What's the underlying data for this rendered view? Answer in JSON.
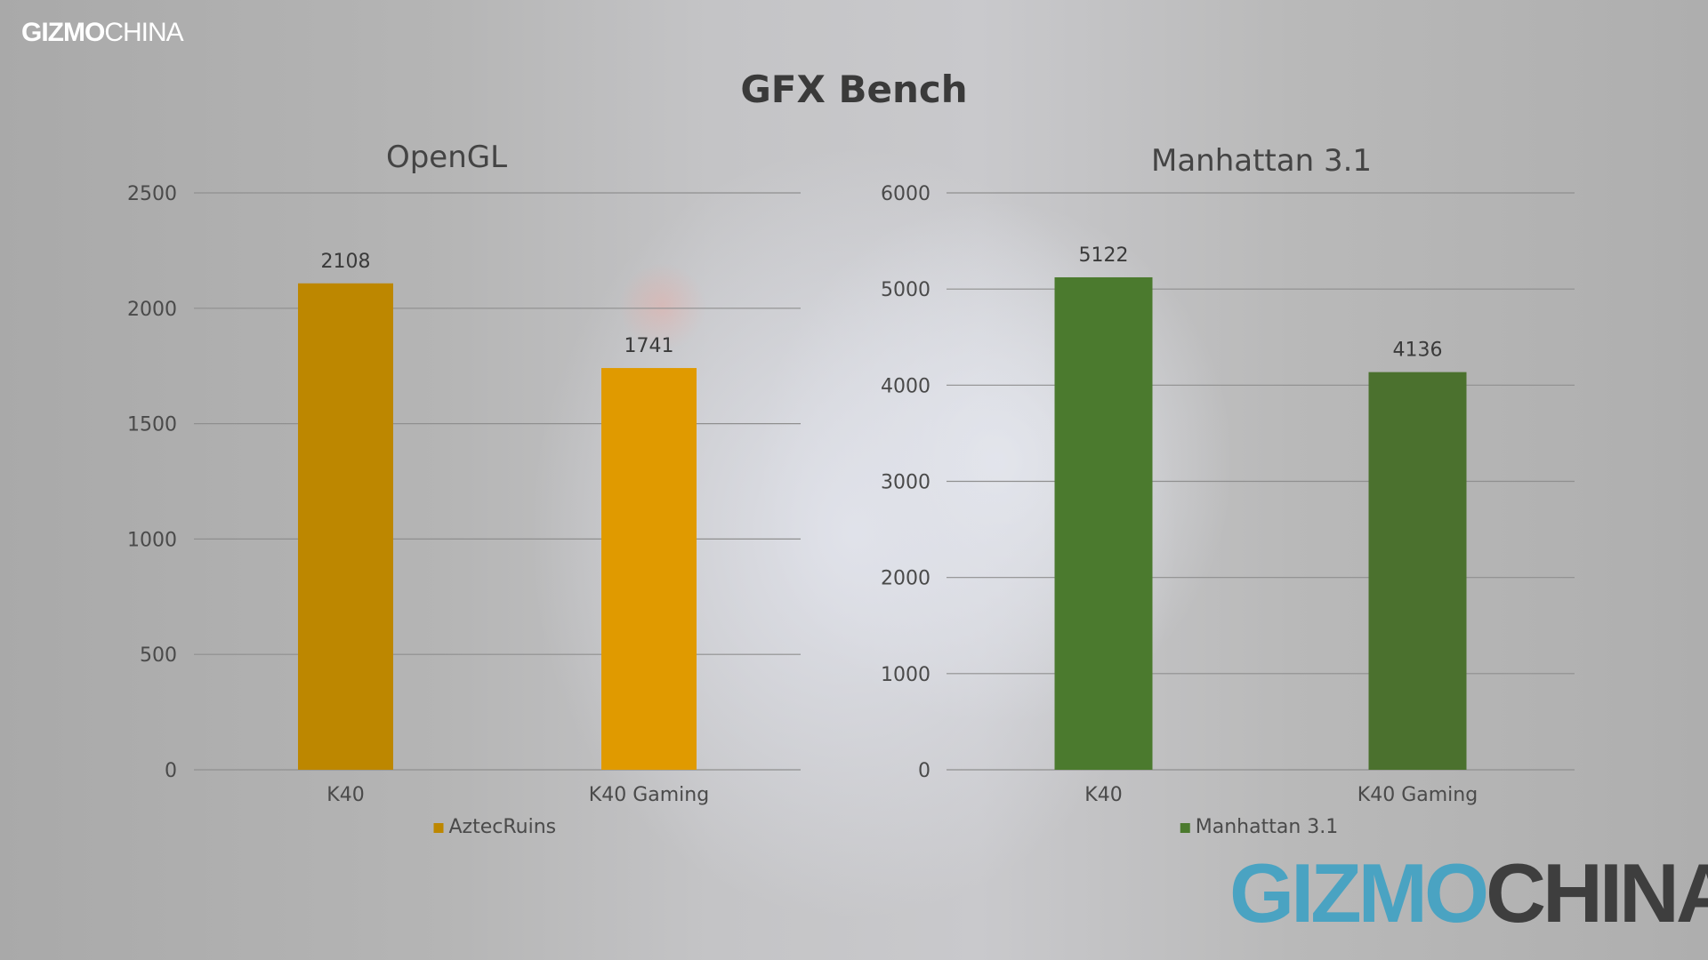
{
  "brand": {
    "small_logo_bold": "GIZMO",
    "small_logo_light": "CHINA",
    "big_logo_first": "GIZMO",
    "big_logo_second": "CHINA"
  },
  "page_title": "GFX Bench",
  "chart_data": [
    {
      "type": "bar",
      "title": "OpenGL",
      "categories": [
        "K40",
        "K40 Gaming"
      ],
      "series": [
        {
          "name": "AztecRuins",
          "values": [
            2108,
            1741
          ]
        }
      ],
      "yticks": [
        0,
        500,
        1000,
        1500,
        2000,
        2500
      ],
      "ylim": [
        0,
        2500
      ],
      "grid": true,
      "legend_position": "bottom",
      "colors": [
        "#bd8700",
        "#e09a00"
      ]
    },
    {
      "type": "bar",
      "title": "Manhattan 3.1",
      "categories": [
        "K40",
        "K40 Gaming"
      ],
      "series": [
        {
          "name": "Manhattan 3.1",
          "values": [
            5122,
            4136
          ]
        }
      ],
      "yticks": [
        0,
        1000,
        2000,
        3000,
        4000,
        5000,
        6000
      ],
      "ylim": [
        0,
        6000
      ],
      "grid": true,
      "legend_position": "bottom",
      "colors": [
        "#4b7a2e",
        "#4b712e"
      ]
    }
  ]
}
